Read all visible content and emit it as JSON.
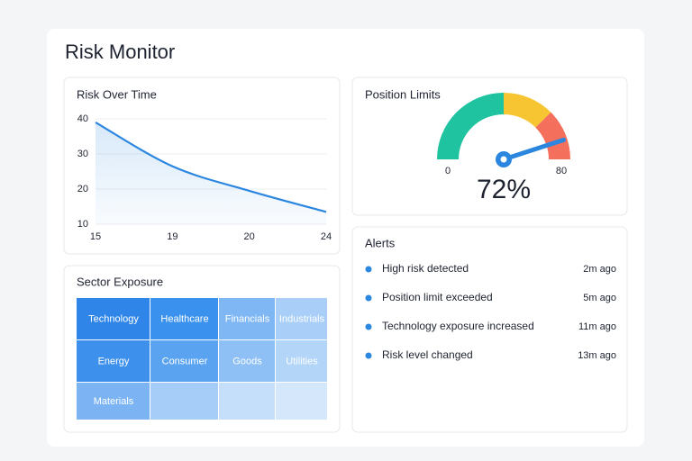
{
  "header": {
    "title": "Risk Monitor"
  },
  "risk_chart": {
    "type": "line",
    "title": "Risk Over Time",
    "categories": [
      "15",
      "19",
      "20",
      "24"
    ],
    "values": [
      39,
      26.5,
      19.5,
      13.5
    ],
    "ylim": [
      10,
      40
    ],
    "yticks": [
      10,
      20,
      30,
      40
    ],
    "color": "#2b86e0",
    "grid": true
  },
  "position_gauge": {
    "type": "gauge",
    "title": "Position Limits",
    "value": 72,
    "value_label": "72%",
    "lim": [
      0,
      80
    ],
    "min_label": "0",
    "max_label": "80",
    "color": "#2b86e0",
    "bands": [
      {
        "from": 0,
        "to": 40,
        "color": "#1fc39f"
      },
      {
        "from": 40,
        "to": 60,
        "color": "#f7c531"
      },
      {
        "from": 60,
        "to": 80,
        "color": "#f46f5c"
      }
    ]
  },
  "sector_exposure": {
    "title": "Sector Exposure",
    "rows": [
      [
        {
          "label": "Technology",
          "color": "#2f86e8"
        },
        {
          "label": "Healthcare",
          "color": "#3b92ee"
        },
        {
          "label": "Financials",
          "color": "#7fb7f4"
        },
        {
          "label": "Industrials",
          "color": "#a9cff8"
        }
      ],
      [
        {
          "label": "Energy",
          "color": "#3d90ec"
        },
        {
          "label": "Consumer",
          "color": "#5aa3f0"
        },
        {
          "label": "Goods",
          "color": "#8ec0f5"
        },
        {
          "label": "Utilities",
          "color": "#b3d5f8"
        }
      ],
      [
        {
          "label": "Materials",
          "color": "#7cb4f3"
        },
        {
          "color": "#a6cdf8"
        },
        {
          "color": "#c5def9"
        },
        {
          "color": "#d5e7fb"
        }
      ]
    ]
  },
  "alerts": {
    "title": "Alerts",
    "items": [
      {
        "text": "High risk detected",
        "time": "2m ago"
      },
      {
        "text": "Position limit exceeded",
        "time": "5m ago"
      },
      {
        "text": "Technology exposure increased",
        "time": "11m ago"
      },
      {
        "text": "Risk level changed",
        "time": "13m ago"
      }
    ]
  }
}
